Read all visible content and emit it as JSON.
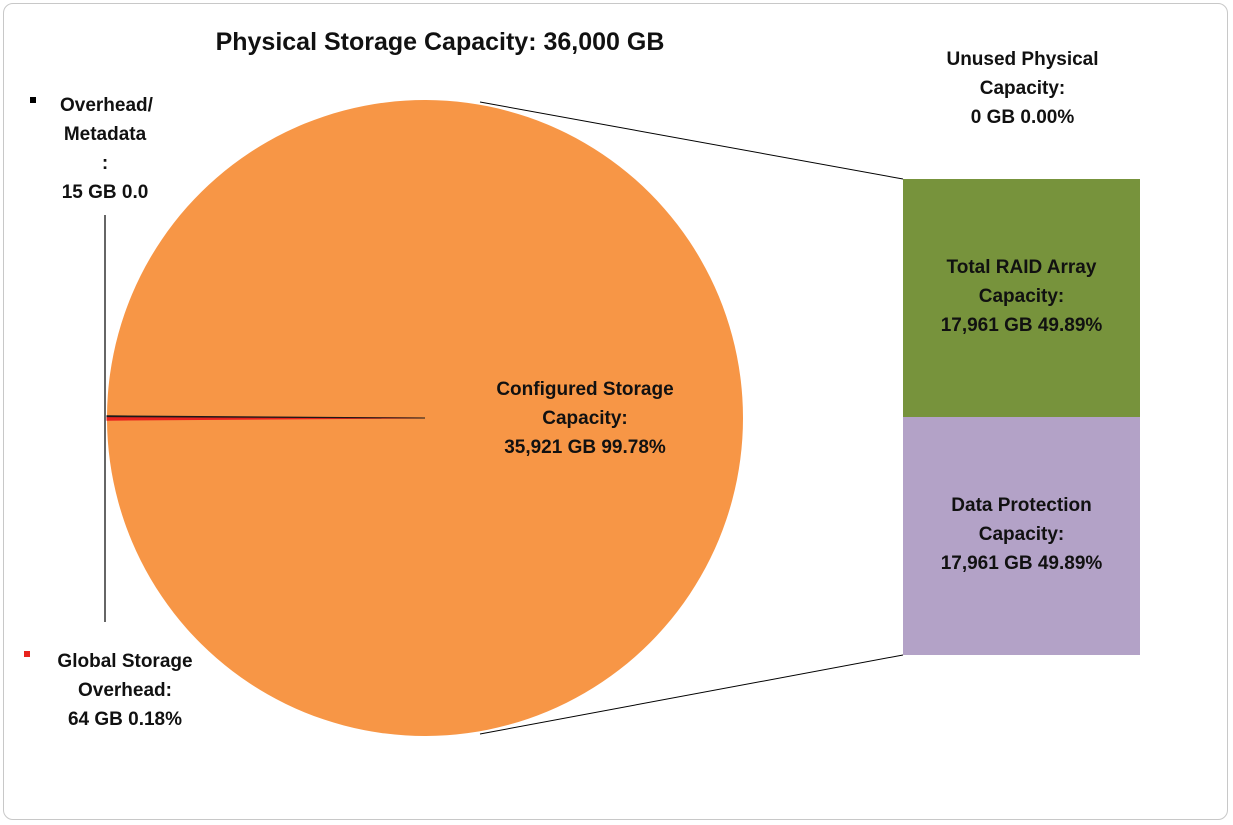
{
  "chart_data": {
    "type": "pie-of-bar",
    "title": "Physical Storage Capacity:  36,000 GB",
    "pie": {
      "categories": [
        "Configured Storage Capacity:",
        "Global Storage Overhead:",
        "Overhead/ Metadata :"
      ],
      "values": [
        35921,
        64,
        15
      ],
      "value_labels": [
        "35,921 GB  99.78%",
        "64 GB  0.18%",
        "15 GB  0.0"
      ],
      "colors": [
        "#f79646",
        "#e8231d",
        "#1a1a1a"
      ]
    },
    "bar": {
      "categories": [
        "Unused Physical Capacity:",
        "Total RAID Array Capacity:",
        "Data Protection Capacity:"
      ],
      "values": [
        0,
        17961,
        17961
      ],
      "value_labels": [
        "0 GB  0.00%",
        "17,961 GB  49.89%",
        "17,961 GB  49.89%"
      ],
      "colors": [
        "#4f81bd",
        "#77933c",
        "#b3a2c7"
      ]
    }
  }
}
